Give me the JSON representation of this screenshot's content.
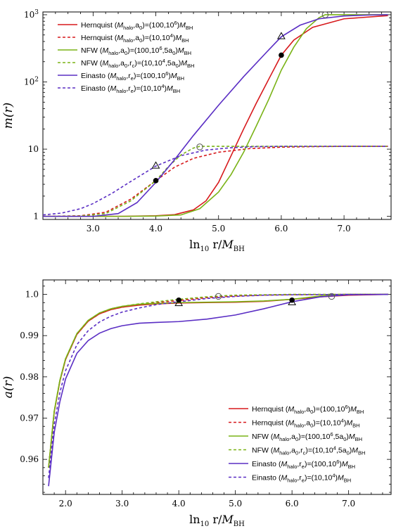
{
  "chart_data": [
    {
      "type": "line",
      "ylabel": "m(r)",
      "xlabel": "ln10 r/M_BH",
      "xlabel_parts": {
        "pre": "ln",
        "sub": "10",
        "mid": " r/",
        "var": "M",
        "var_sub": "BH"
      },
      "y_scale": "log",
      "xlim": [
        2.2,
        7.75
      ],
      "ylim": [
        0.9,
        1100
      ],
      "x_ticks": [
        3.0,
        4.0,
        5.0,
        6.0,
        7.0
      ],
      "x_tick_labels": [
        "3.0",
        "4.0",
        "5.0",
        "6.0",
        "7.0"
      ],
      "y_ticks": [
        1,
        10,
        100,
        1000
      ],
      "y_tick_labels": [
        {
          "base": "1",
          "exp": ""
        },
        {
          "base": "10",
          "exp": ""
        },
        {
          "base": "10",
          "exp": "2"
        },
        {
          "base": "10",
          "exp": "3"
        }
      ],
      "legend_position": "top-left",
      "series": [
        {
          "name": "Hernquist (Mhalo,a0)=(100,10^6)MBH",
          "color": "#d7191c",
          "dash": "solid",
          "x": [
            2.2,
            3.0,
            3.5,
            4.0,
            4.3,
            4.6,
            4.8,
            5.0,
            5.2,
            5.4,
            5.6,
            5.8,
            6.0,
            6.2,
            6.5,
            7.0,
            7.7
          ],
          "y": [
            1.0,
            1.0,
            1.003,
            1.02,
            1.06,
            1.25,
            1.7,
            3.2,
            8,
            20,
            48,
            110,
            250,
            420,
            650,
            870,
            970
          ]
        },
        {
          "name": "Hernquist (Mhalo,a0)=(10,10^4)MBH",
          "color": "#d7191c",
          "dash": "dashed",
          "x": [
            2.2,
            2.8,
            3.2,
            3.6,
            4.0,
            4.3,
            4.6,
            5.0,
            5.5,
            6.0,
            6.5,
            7.0,
            7.7
          ],
          "y": [
            1.0,
            1.02,
            1.15,
            1.8,
            3.4,
            5.4,
            7.3,
            9.0,
            10.2,
            10.7,
            10.9,
            11.0,
            11.0
          ]
        },
        {
          "name": "NFW (Mhalo,a0)=(100,10^6,5a0)MBH",
          "color": "#7ab317",
          "dash": "solid",
          "x": [
            2.2,
            3.0,
            3.5,
            4.0,
            4.4,
            4.7,
            5.0,
            5.2,
            5.4,
            5.6,
            5.8,
            6.0,
            6.2,
            6.4,
            6.6,
            6.7,
            7.0,
            7.7
          ],
          "y": [
            1.0,
            1.0,
            1.0,
            1.01,
            1.05,
            1.3,
            2.3,
            4.2,
            9,
            22,
            55,
            150,
            330,
            620,
            900,
            1000,
            1000,
            1000
          ]
        },
        {
          "name": "NFW (Mhalo,a0,rc)=(10,10^4,5a0)MBH",
          "color": "#7ab317",
          "dash": "dashed",
          "x": [
            2.2,
            2.8,
            3.2,
            3.6,
            4.0,
            4.2,
            4.4,
            4.6,
            4.7,
            5.0,
            5.5,
            6.0,
            7.0,
            7.7
          ],
          "y": [
            1.0,
            1.01,
            1.1,
            1.7,
            3.4,
            5.5,
            8.2,
            10.4,
            11.0,
            11.0,
            11.0,
            11.0,
            11.0,
            11.0
          ]
        },
        {
          "name": "Einasto (Mhalo,re)=(100,10^6)MBH",
          "color": "#5a2ec4",
          "dash": "solid",
          "x": [
            2.2,
            3.0,
            3.4,
            3.7,
            4.0,
            4.3,
            4.6,
            5.0,
            5.4,
            5.8,
            6.0,
            6.3,
            6.6,
            7.0,
            7.4,
            7.7
          ],
          "y": [
            1.0,
            1.0,
            1.1,
            1.6,
            3.2,
            7,
            16,
            45,
            120,
            300,
            470,
            700,
            870,
            960,
            990,
            1000
          ]
        },
        {
          "name": "Einasto (Mhalo,re)=(10,10^4)MBH",
          "color": "#5a2ec4",
          "dash": "dashed",
          "x": [
            2.2,
            2.5,
            2.8,
            3.0,
            3.3,
            3.6,
            4.0,
            4.4,
            4.8,
            5.2,
            5.6,
            6.0,
            7.0,
            7.7
          ],
          "y": [
            1.05,
            1.12,
            1.3,
            1.55,
            2.2,
            3.3,
            5.6,
            8.0,
            9.7,
            10.5,
            10.9,
            11.0,
            11.0,
            11.0
          ]
        }
      ],
      "markers": [
        {
          "shape": "filled-circle",
          "x": 4.0,
          "y": 3.4
        },
        {
          "shape": "open-triangle",
          "x": 4.0,
          "y": 5.7
        },
        {
          "shape": "open-circle",
          "x": 4.7,
          "y": 10.8
        },
        {
          "shape": "filled-circle",
          "x": 6.0,
          "y": 250
        },
        {
          "shape": "open-triangle",
          "x": 6.0,
          "y": 480
        },
        {
          "shape": "open-circle",
          "x": 6.7,
          "y": 1000
        }
      ]
    },
    {
      "type": "line",
      "ylabel": "a(r)",
      "xlabel": "ln10 r/M_BH",
      "xlabel_parts": {
        "pre": "ln",
        "sub": "10",
        "mid": " r/",
        "var": "M",
        "var_sub": "BH"
      },
      "y_scale": "linear",
      "xlim": [
        1.6,
        7.75
      ],
      "ylim": [
        0.9515,
        1.0035
      ],
      "x_ticks": [
        2.0,
        3.0,
        4.0,
        5.0,
        6.0,
        7.0
      ],
      "x_tick_labels": [
        "2.0",
        "3.0",
        "4.0",
        "5.0",
        "6.0",
        "7.0"
      ],
      "y_ticks": [
        0.96,
        0.97,
        0.98,
        0.99,
        1.0
      ],
      "y_tick_labels": [
        "0.96",
        "0.97",
        "0.98",
        "0.99",
        "1.0"
      ],
      "legend_position": "bottom-right",
      "series": [
        {
          "name": "Hernquist (Mhalo,a0)=(100,10^6)MBH",
          "color": "#d7191c",
          "dash": "solid",
          "x": [
            1.7,
            1.8,
            1.9,
            2.0,
            2.2,
            2.4,
            2.6,
            2.8,
            3.0,
            3.3,
            3.6,
            4.0,
            4.5,
            5.0,
            5.5,
            6.0,
            6.5,
            7.0,
            7.7
          ],
          "y": [
            0.958,
            0.9715,
            0.979,
            0.9842,
            0.9903,
            0.9935,
            0.9953,
            0.9963,
            0.9969,
            0.9974,
            0.9977,
            0.9979,
            0.998,
            0.9981,
            0.9983,
            0.9988,
            0.9994,
            0.9998,
            1.0
          ]
        },
        {
          "name": "Hernquist (Mhalo,a0)=(10,10^4)MBH",
          "color": "#d7191c",
          "dash": "dashed",
          "x": [
            1.7,
            1.8,
            1.9,
            2.0,
            2.2,
            2.4,
            2.6,
            2.8,
            3.0,
            3.3,
            3.6,
            4.0,
            4.5,
            5.0,
            5.5,
            6.0,
            7.0,
            7.7
          ],
          "y": [
            0.958,
            0.9715,
            0.979,
            0.9842,
            0.9903,
            0.9935,
            0.9953,
            0.9963,
            0.9969,
            0.9975,
            0.998,
            0.9985,
            0.9992,
            0.9996,
            0.9998,
            0.9999,
            1.0,
            1.0
          ]
        },
        {
          "name": "NFW (Mhalo,a0)=(100,10^6,5a0)MBH",
          "color": "#7ab317",
          "dash": "solid",
          "x": [
            1.7,
            1.8,
            1.9,
            2.0,
            2.2,
            2.4,
            2.6,
            2.8,
            3.0,
            3.3,
            3.6,
            4.0,
            4.5,
            5.0,
            5.5,
            6.0,
            6.5,
            7.0,
            7.7
          ],
          "y": [
            0.958,
            0.9717,
            0.9792,
            0.9844,
            0.9905,
            0.9937,
            0.9955,
            0.9965,
            0.9971,
            0.9976,
            0.9978,
            0.998,
            0.9981,
            0.9982,
            0.9984,
            0.9988,
            0.9996,
            1.0,
            1.0
          ]
        },
        {
          "name": "NFW (Mhalo,a0,rc)=(10,10^4,5a0)MBH",
          "color": "#7ab317",
          "dash": "dashed",
          "x": [
            1.7,
            1.8,
            1.9,
            2.0,
            2.2,
            2.4,
            2.6,
            2.8,
            3.0,
            3.3,
            3.6,
            4.0,
            4.5,
            4.7,
            5.0,
            6.0,
            7.0,
            7.7
          ],
          "y": [
            0.958,
            0.9717,
            0.9792,
            0.9844,
            0.9905,
            0.9937,
            0.9955,
            0.9965,
            0.9971,
            0.9977,
            0.9982,
            0.9988,
            0.9994,
            0.9996,
            0.9998,
            1.0,
            1.0,
            1.0
          ]
        },
        {
          "name": "Einasto (Mhalo,re)=(100,10^6)MBH",
          "color": "#5a2ec4",
          "dash": "solid",
          "x": [
            1.7,
            1.8,
            1.9,
            2.0,
            2.2,
            2.4,
            2.6,
            2.8,
            3.0,
            3.3,
            3.6,
            4.0,
            4.5,
            5.0,
            5.5,
            6.0,
            6.5,
            7.0,
            7.7
          ],
          "y": [
            0.9535,
            0.9665,
            0.974,
            0.9795,
            0.9857,
            0.9888,
            0.9906,
            0.9917,
            0.9924,
            0.993,
            0.9932,
            0.9934,
            0.994,
            0.995,
            0.9965,
            0.9982,
            0.9994,
            0.9999,
            1.0
          ]
        },
        {
          "name": "Einasto (Mhalo,re)=(10,10^4)MBH",
          "color": "#5a2ec4",
          "dash": "dashed",
          "x": [
            1.7,
            1.8,
            1.9,
            2.0,
            2.2,
            2.4,
            2.6,
            2.8,
            3.0,
            3.3,
            3.6,
            4.0,
            4.5,
            5.0,
            5.5,
            6.0,
            7.0,
            7.7
          ],
          "y": [
            0.9555,
            0.9685,
            0.9762,
            0.9815,
            0.9878,
            0.9912,
            0.9933,
            0.9947,
            0.9957,
            0.9967,
            0.9975,
            0.9982,
            0.999,
            0.9995,
            0.9998,
            0.9999,
            1.0,
            1.0
          ]
        }
      ],
      "markers": [
        {
          "shape": "filled-circle",
          "x": 4.0,
          "y": 0.9986
        },
        {
          "shape": "open-triangle",
          "x": 4.0,
          "y": 0.9979
        },
        {
          "shape": "open-circle",
          "x": 4.7,
          "y": 0.9995
        },
        {
          "shape": "filled-circle",
          "x": 6.0,
          "y": 0.9986
        },
        {
          "shape": "open-triangle",
          "x": 6.0,
          "y": 0.9981
        },
        {
          "shape": "open-circle",
          "x": 6.7,
          "y": 0.9995
        }
      ]
    }
  ],
  "legend_labels": [
    {
      "prefix": "Hernquist (",
      "params": [
        {
          "t": "M",
          "s": "halo"
        },
        {
          "t": ",a",
          "s": "0"
        }
      ],
      "eq": ")=(100,10",
      "sup": "6",
      "tail": ")",
      "unit": "M",
      "unit_sub": "BH"
    },
    {
      "prefix": "Hernquist (",
      "params": [
        {
          "t": "M",
          "s": "halo"
        },
        {
          "t": ",a",
          "s": "0"
        }
      ],
      "eq": ")=(10,10",
      "sup": "4",
      "tail": ")",
      "unit": "M",
      "unit_sub": "BH"
    },
    {
      "prefix": "NFW (",
      "params": [
        {
          "t": "M",
          "s": "halo"
        },
        {
          "t": ",a",
          "s": "0"
        }
      ],
      "eq": ")=(100,10",
      "sup": "6",
      "tail": ",5a",
      "tail_sub": "0",
      "tail_end": ")",
      "unit": "M",
      "unit_sub": "BH"
    },
    {
      "prefix": "NFW (",
      "params": [
        {
          "t": "M",
          "s": "halo"
        },
        {
          "t": ",a",
          "s": "0"
        },
        {
          "t": ",r",
          "s": "c"
        }
      ],
      "eq": ")=(10,10",
      "sup": "4",
      "tail": ",5a",
      "tail_sub": "0",
      "tail_end": ")",
      "unit": "M",
      "unit_sub": "BH"
    },
    {
      "prefix": "Einasto (",
      "params": [
        {
          "t": "M",
          "s": "halo"
        },
        {
          "t": ",r",
          "s": "e"
        }
      ],
      "eq": ")=(100,10",
      "sup": "6",
      "tail": ")",
      "unit": "M",
      "unit_sub": "BH"
    },
    {
      "prefix": "Einasto (",
      "params": [
        {
          "t": "M",
          "s": "halo"
        },
        {
          "t": ",r",
          "s": "e"
        }
      ],
      "eq": ")=(10,10",
      "sup": "4",
      "tail": ")",
      "unit": "M",
      "unit_sub": "BH"
    }
  ]
}
